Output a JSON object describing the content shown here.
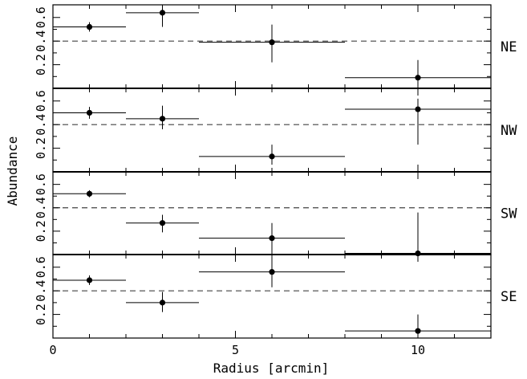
{
  "chart_data": {
    "type": "scatter",
    "xlabel": "Radius [arcmin]",
    "ylabel": "Abundance",
    "xlim": [
      0,
      12
    ],
    "ylim": [
      0,
      0.68
    ],
    "x_ticks": [
      0,
      5,
      10
    ],
    "y_ticks": [
      0.2,
      0.4,
      0.6
    ],
    "y_tick_labels": [
      "0.2",
      "0.4",
      "0.6"
    ],
    "reference_line": 0.4,
    "grid": false,
    "panels": [
      {
        "name": "NE",
        "points": [
          {
            "x": 1,
            "xlo": 0,
            "xhi": 2,
            "y": 0.52,
            "ylo": 0.48,
            "yhi": 0.56
          },
          {
            "x": 3,
            "xlo": 2,
            "xhi": 4,
            "y": 0.64,
            "ylo": 0.52,
            "yhi": 0.68
          },
          {
            "x": 6,
            "xlo": 4,
            "xhi": 8,
            "y": 0.39,
            "ylo": 0.22,
            "yhi": 0.54
          },
          {
            "x": 10,
            "xlo": 8,
            "xhi": 12,
            "y": 0.09,
            "ylo": 0.0,
            "yhi": 0.24
          }
        ]
      },
      {
        "name": "NW",
        "points": [
          {
            "x": 1,
            "xlo": 0,
            "xhi": 2,
            "y": 0.5,
            "ylo": 0.45,
            "yhi": 0.55
          },
          {
            "x": 3,
            "xlo": 2,
            "xhi": 4,
            "y": 0.45,
            "ylo": 0.36,
            "yhi": 0.56
          },
          {
            "x": 6,
            "xlo": 4,
            "xhi": 8,
            "y": 0.13,
            "ylo": 0.06,
            "yhi": 0.23
          },
          {
            "x": 10,
            "xlo": 8,
            "xhi": 12,
            "y": 0.53,
            "ylo": 0.23,
            "yhi": 0.62
          }
        ]
      },
      {
        "name": "SW",
        "points": [
          {
            "x": 1,
            "xlo": 0,
            "xhi": 2,
            "y": 0.52,
            "ylo": 0.49,
            "yhi": 0.55
          },
          {
            "x": 3,
            "xlo": 2,
            "xhi": 4,
            "y": 0.27,
            "ylo": 0.19,
            "yhi": 0.34
          },
          {
            "x": 6,
            "xlo": 4,
            "xhi": 8,
            "y": 0.14,
            "ylo": 0.0,
            "yhi": 0.27
          },
          {
            "x": 10,
            "xlo": 8,
            "xhi": 12,
            "y": 0.01,
            "ylo": 0.0,
            "yhi": 0.36
          }
        ]
      },
      {
        "name": "SE",
        "points": [
          {
            "x": 1,
            "xlo": 0,
            "xhi": 2,
            "y": 0.49,
            "ylo": 0.45,
            "yhi": 0.53
          },
          {
            "x": 3,
            "xlo": 2,
            "xhi": 4,
            "y": 0.3,
            "ylo": 0.22,
            "yhi": 0.39
          },
          {
            "x": 6,
            "xlo": 4,
            "xhi": 8,
            "y": 0.56,
            "ylo": 0.43,
            "yhi": 0.68
          },
          {
            "x": 10,
            "xlo": 8,
            "xhi": 12,
            "y": 0.06,
            "ylo": 0.0,
            "yhi": 0.2
          }
        ]
      }
    ]
  }
}
